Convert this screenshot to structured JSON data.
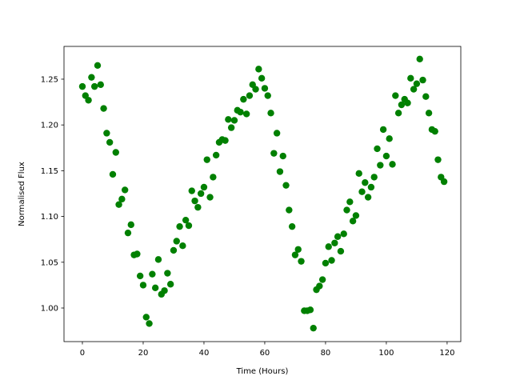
{
  "chart_data": {
    "type": "scatter",
    "xlabel": "Time (Hours)",
    "ylabel": "Normalised Flux",
    "color": "#008000",
    "xlim": [
      -6.05,
      124.5
    ],
    "ylim": [
      0.9633,
      1.2858
    ],
    "xticks": [
      0,
      20,
      40,
      60,
      80,
      100,
      120
    ],
    "yticks": [
      {
        "value": 1,
        "label": "1.00"
      },
      1.05,
      {
        "value": 1.1,
        "label": "1.10"
      },
      1.15,
      {
        "value": 1.2,
        "label": "1.20"
      },
      1.25
    ],
    "x": [
      0,
      1,
      2,
      3,
      4,
      5,
      6,
      7,
      8,
      9,
      10,
      11,
      12,
      13,
      14,
      15,
      16,
      17,
      18,
      19,
      20,
      21,
      22,
      23,
      24,
      25,
      26,
      27,
      28,
      29,
      30,
      31,
      32,
      33,
      34,
      35,
      36,
      37,
      38,
      39,
      40,
      41,
      42,
      43,
      44,
      45,
      46,
      47,
      48,
      49,
      50,
      51,
      52,
      53,
      54,
      55,
      56,
      57,
      58,
      59,
      60,
      61,
      62,
      63,
      64,
      65,
      66,
      67,
      68,
      69,
      70,
      71,
      72,
      73,
      74,
      75,
      76,
      77,
      78,
      79,
      80,
      81,
      82,
      83,
      84,
      85,
      86,
      87,
      88,
      89,
      90,
      91,
      92,
      93,
      94,
      95,
      96,
      97,
      98,
      99,
      100,
      101,
      102,
      103,
      104,
      105,
      106,
      107,
      108,
      109,
      110,
      111,
      112,
      113,
      114,
      115,
      116,
      117,
      118,
      119
    ],
    "values": [
      1.242,
      1.232,
      1.227,
      1.252,
      1.242,
      1.265,
      1.244,
      1.218,
      1.191,
      1.181,
      1.146,
      1.17,
      1.113,
      1.119,
      1.129,
      1.082,
      1.091,
      1.058,
      1.059,
      1.035,
      1.025,
      0.99,
      0.983,
      1.037,
      1.022,
      1.053,
      1.015,
      1.019,
      1.038,
      1.026,
      1.063,
      1.073,
      1.089,
      1.068,
      1.096,
      1.09,
      1.128,
      1.117,
      1.11,
      1.125,
      1.132,
      1.162,
      1.121,
      1.143,
      1.167,
      1.181,
      1.184,
      1.183,
      1.206,
      1.197,
      1.205,
      1.216,
      1.214,
      1.228,
      1.212,
      1.232,
      1.244,
      1.239,
      1.261,
      1.251,
      1.24,
      1.232,
      1.213,
      1.169,
      1.191,
      1.149,
      1.166,
      1.134,
      1.107,
      1.089,
      1.058,
      1.064,
      1.051,
      0.997,
      0.997,
      0.998,
      0.978,
      1.02,
      1.024,
      1.031,
      1.049,
      1.067,
      1.052,
      1.071,
      1.078,
      1.062,
      1.081,
      1.107,
      1.116,
      1.095,
      1.101,
      1.147,
      1.127,
      1.137,
      1.121,
      1.132,
      1.143,
      1.174,
      1.156,
      1.195,
      1.166,
      1.185,
      1.157,
      1.232,
      1.213,
      1.222,
      1.228,
      1.224,
      1.251,
      1.239,
      1.245,
      1.272,
      1.249,
      1.231,
      1.213,
      1.195,
      1.193,
      1.162,
      1.143,
      1.138
    ]
  }
}
